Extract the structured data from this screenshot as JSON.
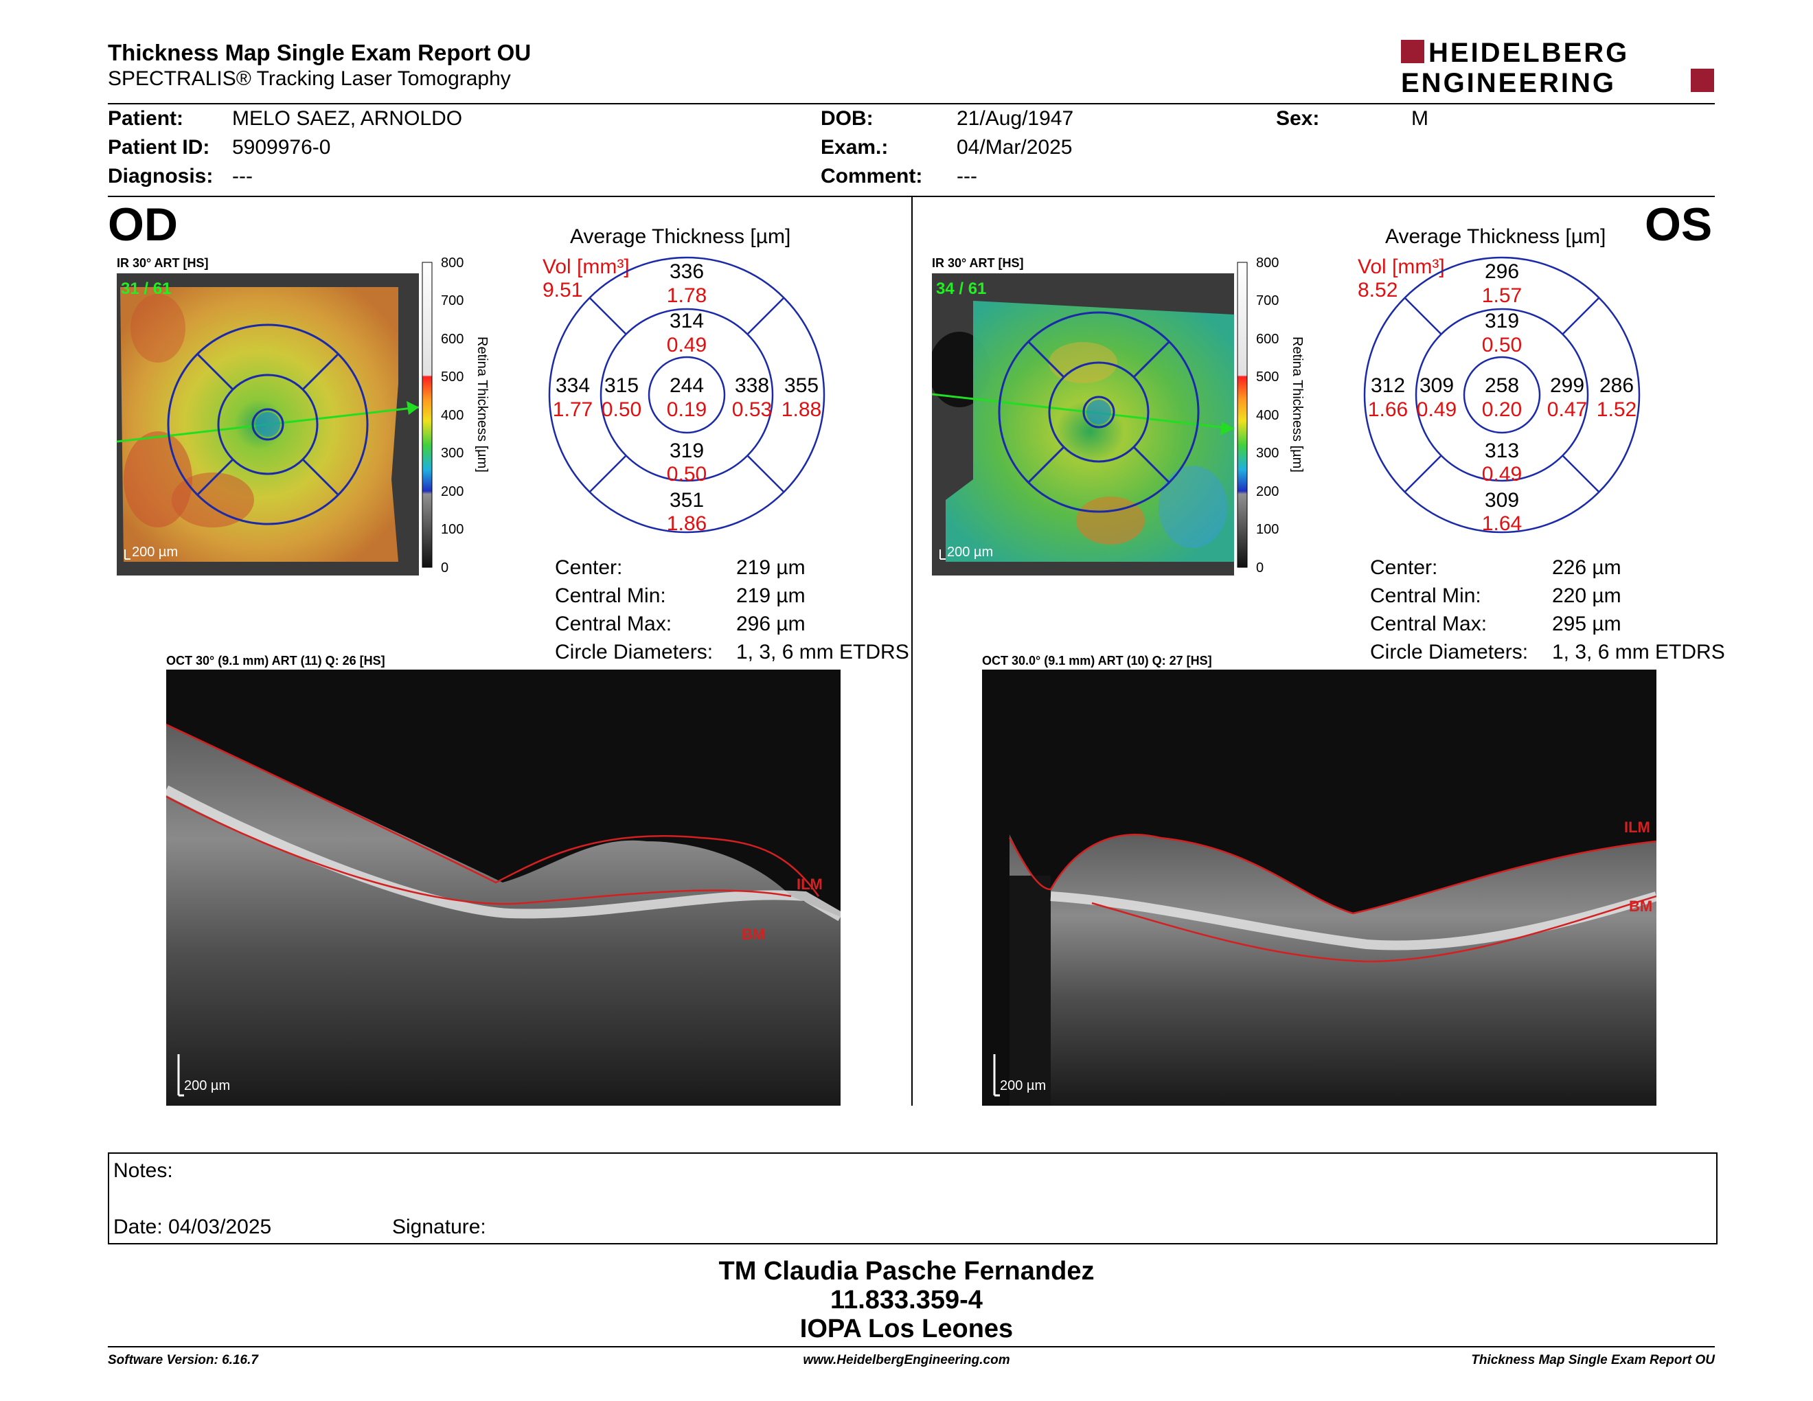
{
  "header": {
    "title": "Thickness Map Single Exam Report OU",
    "subtitle": "SPECTRALIS® Tracking Laser Tomography",
    "logo_line1": "HEIDELBERG",
    "logo_line2": "ENGINEERING",
    "logo_color": "#9b1b30"
  },
  "patient": {
    "patient_label": "Patient:",
    "patient_value": "MELO SAEZ, ARNOLDO",
    "id_label": "Patient ID:",
    "id_value": "5909976-0",
    "diagnosis_label": "Diagnosis:",
    "diagnosis_value": "---",
    "dob_label": "DOB:",
    "dob_value": "21/Aug/1947",
    "exam_label": "Exam.:",
    "exam_value": "04/Mar/2025",
    "comment_label": "Comment:",
    "comment_value": "---",
    "sex_label": "Sex:",
    "sex_value": "M"
  },
  "colorbar": {
    "ticks": [
      "800",
      "700",
      "600",
      "500",
      "400",
      "300",
      "200",
      "100",
      "0"
    ],
    "axis_label": "Retina  Thickness [µm]"
  },
  "od": {
    "eye_label": "OD",
    "map_title": "IR 30° ART [HS]",
    "frame": "31 / 61",
    "scale": "200 µm",
    "avg_title": "Average Thickness [µm]",
    "vol_label": "Vol [mm³]",
    "vol_value": "9.51",
    "grid": {
      "outer_sup": "336",
      "outer_sup_vol": "1.78",
      "inner_sup": "314",
      "inner_sup_vol": "0.49",
      "outer_temp": "334",
      "outer_temp_vol": "1.77",
      "inner_temp": "315",
      "inner_temp_vol": "0.50",
      "center": "244",
      "center_vol": "0.19",
      "inner_nas": "338",
      "inner_nas_vol": "0.53",
      "outer_nas": "355",
      "outer_nas_vol": "1.88",
      "inner_inf": "319",
      "inner_inf_vol": "0.50",
      "outer_inf": "351",
      "outer_inf_vol": "1.86"
    },
    "stats": {
      "center_label": "Center:",
      "center_value": "219 µm",
      "cmin_label": "Central Min:",
      "cmin_value": "219 µm",
      "cmax_label": "Central Max:",
      "cmax_value": "296 µm",
      "diam_label": "Circle Diameters:",
      "diam_value": "1, 3, 6 mm ETDRS"
    },
    "oct_title": "OCT 30° (9.1 mm) ART (11) Q: 26 [HS]",
    "oct_scale": "200 µm",
    "ilm": "ILM",
    "bm": "BM"
  },
  "os": {
    "eye_label": "OS",
    "map_title": "IR 30° ART [HS]",
    "frame": "34 / 61",
    "scale": "200 µm",
    "avg_title": "Average Thickness [µm]",
    "vol_label": "Vol [mm³]",
    "vol_value": "8.52",
    "grid": {
      "outer_sup": "296",
      "outer_sup_vol": "1.57",
      "inner_sup": "319",
      "inner_sup_vol": "0.50",
      "outer_temp": "312",
      "outer_temp_vol": "1.66",
      "inner_temp": "309",
      "inner_temp_vol": "0.49",
      "center": "258",
      "center_vol": "0.20",
      "inner_nas": "299",
      "inner_nas_vol": "0.47",
      "outer_nas": "286",
      "outer_nas_vol": "1.52",
      "inner_inf": "313",
      "inner_inf_vol": "0.49",
      "outer_inf": "309",
      "outer_inf_vol": "1.64"
    },
    "stats": {
      "center_label": "Center:",
      "center_value": "226 µm",
      "cmin_label": "Central Min:",
      "cmin_value": "220 µm",
      "cmax_label": "Central Max:",
      "cmax_value": "295 µm",
      "diam_label": "Circle Diameters:",
      "diam_value": "1, 3, 6 mm ETDRS"
    },
    "oct_title": "OCT 30.0° (9.1 mm) ART (10) Q: 27 [HS]",
    "oct_scale": "200 µm",
    "ilm": "ILM",
    "bm": "BM"
  },
  "notes": {
    "notes_label": "Notes:",
    "date_label": "Date: 04/03/2025",
    "signature_label": "Signature:"
  },
  "signer": {
    "name": "TM Claudia Pasche Fernandez",
    "rut": "11.833.359-4",
    "clinic": "IOPA Los Leones"
  },
  "footer": {
    "software": "Software Version: 6.16.7",
    "website": "www.HeidelbergEngineering.com",
    "report": "Thickness Map Single Exam Report OU"
  }
}
